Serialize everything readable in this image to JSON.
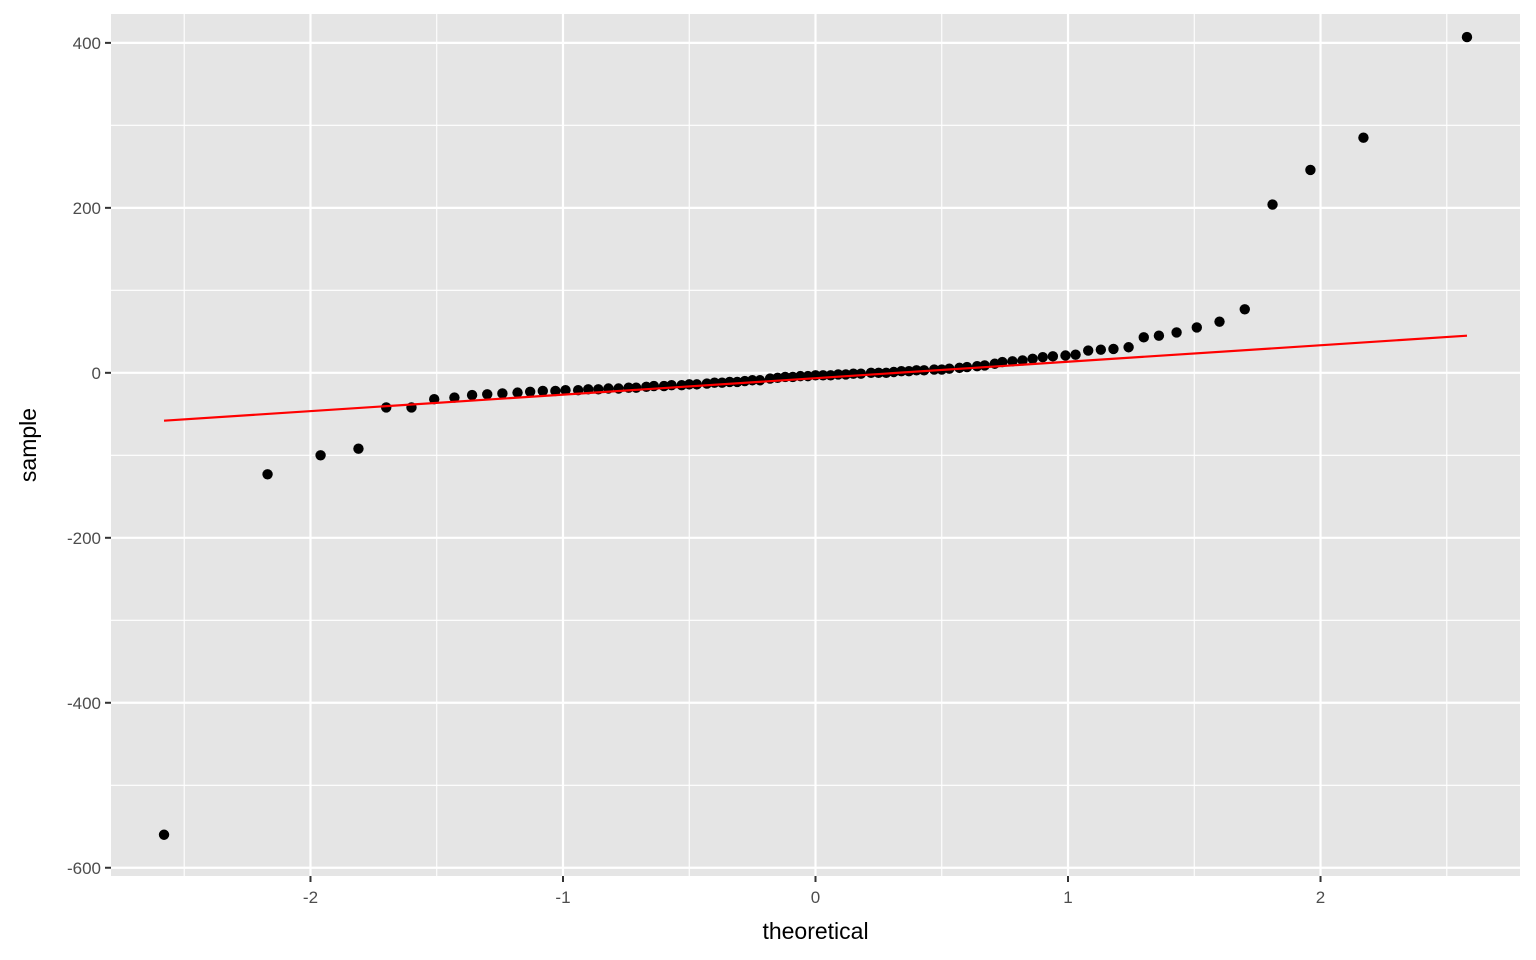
{
  "chart_data": {
    "type": "scatter",
    "title": "",
    "xlabel": "theoretical",
    "ylabel": "sample",
    "xlim": [
      -2.79,
      2.79
    ],
    "ylim": [
      -610,
      435
    ],
    "x_ticks": [
      -2,
      -1,
      0,
      1,
      2
    ],
    "x_tick_labels": [
      "-2",
      "-1",
      "0",
      "1",
      "2"
    ],
    "x_minor_ticks": [
      -2.5,
      -1.5,
      -0.5,
      0.5,
      1.5,
      2.5
    ],
    "y_ticks": [
      -600,
      -400,
      -200,
      0,
      200,
      400
    ],
    "y_tick_labels": [
      "-600",
      "-400",
      "-200",
      "0",
      "200",
      "400"
    ],
    "y_minor_ticks": [
      -500,
      -300,
      -100,
      100,
      300
    ],
    "grid": true,
    "background": "#e5e5e5",
    "grid_color": "#ffffff",
    "point_color": "#000000",
    "line_color": "#ff0000",
    "series": [
      {
        "type": "points",
        "x": [
          -2.58,
          -2.17,
          -1.96,
          -1.81,
          -1.7,
          -1.6,
          -1.51,
          -1.43,
          -1.36,
          -1.3,
          -1.24,
          -1.18,
          -1.13,
          -1.08,
          -1.03,
          -0.99,
          -0.94,
          -0.9,
          -0.86,
          -0.82,
          -0.78,
          -0.74,
          -0.71,
          -0.67,
          -0.64,
          -0.6,
          -0.57,
          -0.53,
          -0.5,
          -0.47,
          -0.43,
          -0.4,
          -0.37,
          -0.34,
          -0.31,
          -0.28,
          -0.25,
          -0.22,
          -0.18,
          -0.15,
          -0.12,
          -0.09,
          -0.06,
          -0.03,
          0.0,
          0.03,
          0.06,
          0.09,
          0.12,
          0.15,
          0.18,
          0.22,
          0.25,
          0.28,
          0.31,
          0.34,
          0.37,
          0.4,
          0.43,
          0.47,
          0.5,
          0.53,
          0.57,
          0.6,
          0.64,
          0.67,
          0.71,
          0.74,
          0.78,
          0.82,
          0.86,
          0.9,
          0.94,
          0.99,
          1.03,
          1.08,
          1.13,
          1.18,
          1.24,
          1.3,
          1.36,
          1.43,
          1.51,
          1.6,
          1.7,
          1.81,
          1.96,
          2.17,
          2.58
        ],
        "y": [
          -560,
          -123,
          -100,
          -92,
          -42,
          -42,
          -32,
          -30,
          -27,
          -26,
          -25,
          -24,
          -23,
          -22,
          -22,
          -21,
          -21,
          -20,
          -20,
          -19,
          -19,
          -18,
          -18,
          -17,
          -16,
          -16,
          -15,
          -15,
          -14,
          -14,
          -13,
          -12,
          -12,
          -11,
          -11,
          -10,
          -9,
          -9,
          -7,
          -6,
          -5,
          -5,
          -4,
          -4,
          -3,
          -3,
          -3,
          -2,
          -2,
          -1,
          -1,
          0,
          0,
          0,
          1,
          2,
          2,
          3,
          3,
          4,
          4,
          5,
          6,
          7,
          8,
          9,
          11,
          13,
          14,
          15,
          17,
          19,
          20,
          21,
          22,
          27,
          28,
          29,
          31,
          43,
          45,
          49,
          55,
          62,
          77,
          204,
          246,
          285,
          407
        ]
      },
      {
        "type": "line",
        "x": [
          -2.58,
          2.58
        ],
        "y": [
          -58,
          45
        ]
      }
    ]
  }
}
